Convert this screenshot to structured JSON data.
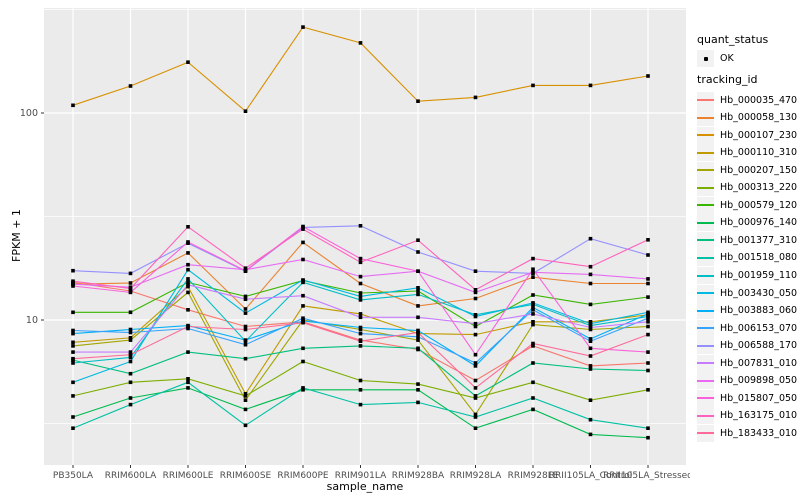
{
  "legend": {
    "quant_status": {
      "title": "quant_status",
      "items": [
        {
          "label": "OK",
          "marker": "point-icon",
          "color": "#000000"
        }
      ]
    },
    "tracking_id": {
      "title": "tracking_id"
    }
  },
  "chart_data": {
    "type": "line",
    "title": "",
    "xlabel": "sample_name",
    "ylabel": "FPKM + 1",
    "y_scale": "log10",
    "ylim": [
      2.0,
      321
    ],
    "y_tick_labels": [
      "100",
      "10"
    ],
    "y_tick_values": [
      100,
      10
    ],
    "y_minor_values": [
      316.2,
      31.62,
      3.162
    ],
    "grid": true,
    "legend_position": "right",
    "panel_bg": "#EBEBEB",
    "grid_color": "#FFFFFF",
    "key_bg": "#F2F2F2",
    "point_color": "#000000",
    "tick_text_color": "#4D4D4D",
    "categories": [
      "PB350LA",
      "RRIM600LA",
      "RRIM600LE",
      "RRIM600SE",
      "RRIM600PE",
      "RRIM901LA",
      "RRIM928BA",
      "RRIM928LA",
      "RRIM928LE",
      "RRII105LA_Control",
      "RRII105LA_Stressed"
    ],
    "series": [
      {
        "tracking_id": "Hb_000035_470",
        "quant_status": "OK",
        "color": "#F8766D",
        "values": [
          15.2,
          13.8,
          11.2,
          9.3,
          9.8,
          8.0,
          7.2,
          5.1,
          7.5,
          6.0,
          6.2
        ]
      },
      {
        "tracking_id": "Hb_000058_130",
        "quant_status": "OK",
        "color": "#EA8331",
        "values": [
          14.9,
          15.1,
          21.1,
          11.3,
          23.7,
          15.0,
          11.7,
          12.7,
          16.1,
          15.0,
          15.0
        ]
      },
      {
        "tracking_id": "Hb_000107_230",
        "quant_status": "OK",
        "color": "#D89000",
        "values": [
          109,
          135,
          176,
          102,
          260,
          218,
          114,
          119,
          136,
          136,
          151
        ]
      },
      {
        "tracking_id": "Hb_000110_310",
        "quant_status": "OK",
        "color": "#C09B00",
        "values": [
          7.8,
          8.2,
          14.5,
          4.4,
          11.7,
          10.7,
          8.6,
          8.5,
          9.8,
          9.8,
          10.6
        ]
      },
      {
        "tracking_id": "Hb_000207_150",
        "quant_status": "OK",
        "color": "#A3A500",
        "values": [
          7.5,
          8.0,
          13.6,
          4.1,
          10.0,
          9.0,
          8.0,
          3.5,
          9.5,
          9.0,
          9.3
        ]
      },
      {
        "tracking_id": "Hb_000313_220",
        "quant_status": "OK",
        "color": "#7CAE00",
        "values": [
          4.3,
          5.0,
          5.2,
          4.3,
          6.3,
          5.1,
          4.9,
          4.2,
          5.0,
          4.1,
          4.6
        ]
      },
      {
        "tracking_id": "Hb_000579_120",
        "quant_status": "OK",
        "color": "#39B600",
        "values": [
          10.9,
          10.9,
          15.2,
          13.0,
          15.5,
          13.5,
          13.8,
          9.3,
          13.2,
          11.9,
          12.9
        ]
      },
      {
        "tracking_id": "Hb_000976_140",
        "quant_status": "OK",
        "color": "#00BB4E",
        "values": [
          3.4,
          4.2,
          4.7,
          3.7,
          4.6,
          4.6,
          4.6,
          3.0,
          3.7,
          2.8,
          2.7
        ]
      },
      {
        "tracking_id": "Hb_001377_310",
        "quant_status": "OK",
        "color": "#00BF7D",
        "values": [
          6.4,
          5.5,
          7.0,
          6.5,
          7.3,
          7.5,
          7.3,
          4.3,
          6.2,
          5.8,
          5.7
        ]
      },
      {
        "tracking_id": "Hb_001518_080",
        "quant_status": "OK",
        "color": "#00C1A3",
        "values": [
          3.0,
          3.9,
          5.0,
          3.1,
          4.7,
          3.9,
          4.0,
          3.4,
          4.2,
          3.3,
          3.0
        ]
      },
      {
        "tracking_id": "Hb_001959_110",
        "quant_status": "OK",
        "color": "#00BFC4",
        "values": [
          6.2,
          6.6,
          15.8,
          7.9,
          15.2,
          12.5,
          13.3,
          10.6,
          11.9,
          9.4,
          10.4
        ]
      },
      {
        "tracking_id": "Hb_003430_050",
        "quant_status": "OK",
        "color": "#00BAE0",
        "values": [
          5.0,
          6.3,
          17.5,
          10.8,
          15.6,
          13.0,
          14.3,
          10.4,
          12.1,
          9.6,
          10.9
        ]
      },
      {
        "tracking_id": "Hb_003883_060",
        "quant_status": "OK",
        "color": "#00B0F6",
        "values": [
          8.6,
          9.0,
          9.4,
          8.0,
          9.9,
          9.2,
          8.9,
          6.0,
          11.5,
          8.1,
          10.7
        ]
      },
      {
        "tracking_id": "Hb_006153_070",
        "quant_status": "OK",
        "color": "#35A2FF",
        "values": [
          8.9,
          8.7,
          9.1,
          7.6,
          10.2,
          8.6,
          8.3,
          6.2,
          11.2,
          7.9,
          10.2
        ]
      },
      {
        "tracking_id": "Hb_006588_170",
        "quant_status": "OK",
        "color": "#9590FF",
        "values": [
          17.3,
          16.8,
          23.5,
          17.2,
          28.0,
          28.5,
          21.3,
          17.2,
          16.8,
          24.7,
          20.6
        ]
      },
      {
        "tracking_id": "Hb_007831_010",
        "quant_status": "OK",
        "color": "#C77CFF",
        "values": [
          7.0,
          7.0,
          14.8,
          12.6,
          13.1,
          10.3,
          10.3,
          9.6,
          10.7,
          9.2,
          9.8
        ]
      },
      {
        "tracking_id": "Hb_009898_050",
        "quant_status": "OK",
        "color": "#E76BF3",
        "values": [
          14.9,
          14.4,
          18.5,
          17.5,
          19.6,
          16.2,
          17.2,
          13.6,
          17.0,
          16.6,
          15.8
        ]
      },
      {
        "tracking_id": "Hb_015807_050",
        "quant_status": "OK",
        "color": "#FA62DB",
        "values": [
          14.6,
          13.6,
          23.8,
          17.3,
          28.3,
          19.8,
          17.2,
          6.8,
          17.6,
          7.3,
          7.0
        ]
      },
      {
        "tracking_id": "Hb_163175_010",
        "quant_status": "OK",
        "color": "#FF62BC",
        "values": [
          15.4,
          14.2,
          28.2,
          17.8,
          27.5,
          19.0,
          24.3,
          14.0,
          19.8,
          18.1,
          24.4
        ]
      },
      {
        "tracking_id": "Hb_183433_010",
        "quant_status": "OK",
        "color": "#FF6A98",
        "values": [
          6.5,
          6.8,
          9.3,
          9.0,
          9.7,
          7.9,
          8.7,
          4.7,
          7.7,
          6.7,
          8.5
        ]
      }
    ]
  }
}
